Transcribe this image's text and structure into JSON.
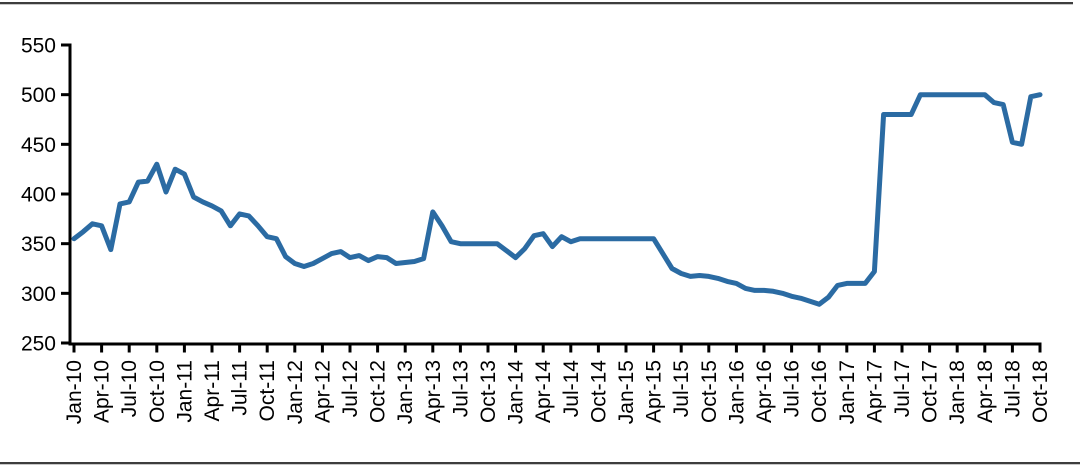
{
  "page": {
    "background": "#ffffff",
    "has_top_divider": true,
    "has_bottom_divider": true
  },
  "chart_data": {
    "type": "line",
    "title": "",
    "frequency": "monthly",
    "x_start": "Jan-10",
    "x_end": "Oct-18",
    "x_tick_every_n_months": 3,
    "x_tick_labels": [
      "Jan-10",
      "Apr-10",
      "Jul-10",
      "Oct-10",
      "Jan-11",
      "Apr-11",
      "Jul-11",
      "Oct-11",
      "Jan-12",
      "Apr-12",
      "Jul-12",
      "Oct-12",
      "Jan-13",
      "Apr-13",
      "Jul-13",
      "Oct-13",
      "Jan-14",
      "Apr-14",
      "Jul-14",
      "Oct-14",
      "Jan-15",
      "Apr-15",
      "Jul-15",
      "Oct-15",
      "Jan-16",
      "Apr-16",
      "Jul-16",
      "Oct-16",
      "Jan-17",
      "Apr-17",
      "Jul-17",
      "Oct-17",
      "Jan-18",
      "Apr-18",
      "Jul-18",
      "Oct-18"
    ],
    "ylim": [
      250,
      550
    ],
    "y_ticks": [
      250,
      300,
      350,
      400,
      450,
      500,
      550
    ],
    "y_tick_labels_top_down": [
      "550",
      "500",
      "450",
      "400",
      "350",
      "300",
      "250"
    ],
    "grid": "off",
    "legend": "none",
    "line_color": "#2b6ba3",
    "axis_color": "#000000",
    "series": [
      {
        "name": "series-1",
        "values": [
          355,
          362,
          370,
          368,
          344,
          390,
          392,
          412,
          413,
          430,
          402,
          425,
          420,
          397,
          392,
          388,
          383,
          368,
          380,
          378,
          368,
          357,
          355,
          337,
          330,
          327,
          330,
          335,
          340,
          342,
          336,
          338,
          333,
          337,
          336,
          330,
          331,
          332,
          335,
          382,
          368,
          352,
          350,
          350,
          350,
          350,
          350,
          343,
          336,
          345,
          358,
          360,
          347,
          357,
          352,
          355,
          355,
          355,
          355,
          355,
          355,
          355,
          355,
          355,
          340,
          325,
          320,
          317,
          318,
          317,
          315,
          312,
          310,
          305,
          303,
          303,
          302,
          300,
          297,
          295,
          292,
          289,
          296,
          308,
          310,
          310,
          310,
          322,
          480,
          480,
          480,
          480,
          500,
          500,
          500,
          500,
          500,
          500,
          500,
          500,
          492,
          490,
          452,
          450,
          498,
          500
        ]
      }
    ]
  }
}
